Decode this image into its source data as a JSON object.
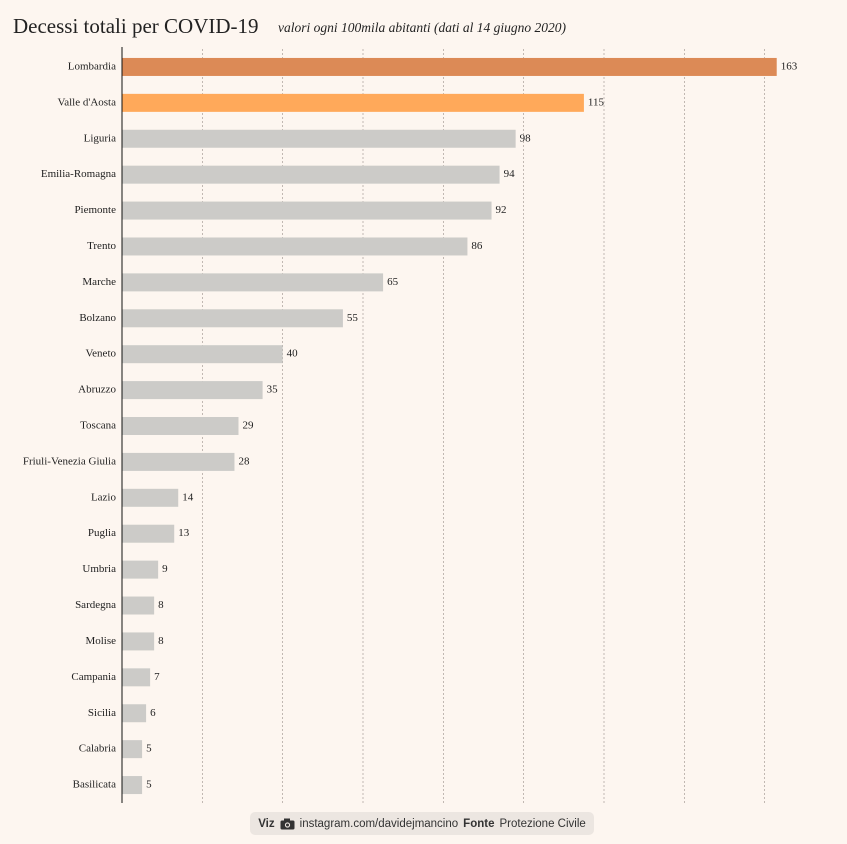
{
  "chart_data": {
    "type": "barh",
    "title": "Decessi totali per COVID-19",
    "subtitle": "valori ogni 100mila abitanti (dati al 14 giugno 2020)",
    "categories": [
      "Lombardia",
      "Valle d'Aosta",
      "Liguria",
      "Emilia-Romagna",
      "Piemonte",
      "Trento",
      "Marche",
      "Bolzano",
      "Veneto",
      "Abruzzo",
      "Toscana",
      "Friuli-Venezia Giulia",
      "Lazio",
      "Puglia",
      "Umbria",
      "Sardegna",
      "Molise",
      "Campania",
      "Sicilia",
      "Calabria",
      "Basilicata"
    ],
    "values": [
      163,
      115,
      98,
      94,
      92,
      86,
      65,
      55,
      40,
      35,
      29,
      28,
      14,
      13,
      9,
      8,
      8,
      7,
      6,
      5,
      5
    ],
    "colors": [
      "#dc8a56",
      "#ffa95a",
      "#cccbc8",
      "#cccbc8",
      "#cccbc8",
      "#cccbc8",
      "#cccbc8",
      "#cccbc8",
      "#cccbc8",
      "#cccbc8",
      "#cccbc8",
      "#cccbc8",
      "#cccbc8",
      "#cccbc8",
      "#cccbc8",
      "#cccbc8",
      "#cccbc8",
      "#cccbc8",
      "#cccbc8",
      "#cccbc8",
      "#cccbc8"
    ],
    "xlim": [
      0,
      180
    ],
    "gridlines": [
      20,
      40,
      60,
      80,
      100,
      120,
      140,
      160
    ],
    "grid": true
  },
  "footer": {
    "viz_label": "Viz",
    "handle": "instagram.com/davidejmancino",
    "source_label": "Fonte",
    "source": "Protezione Civile"
  }
}
